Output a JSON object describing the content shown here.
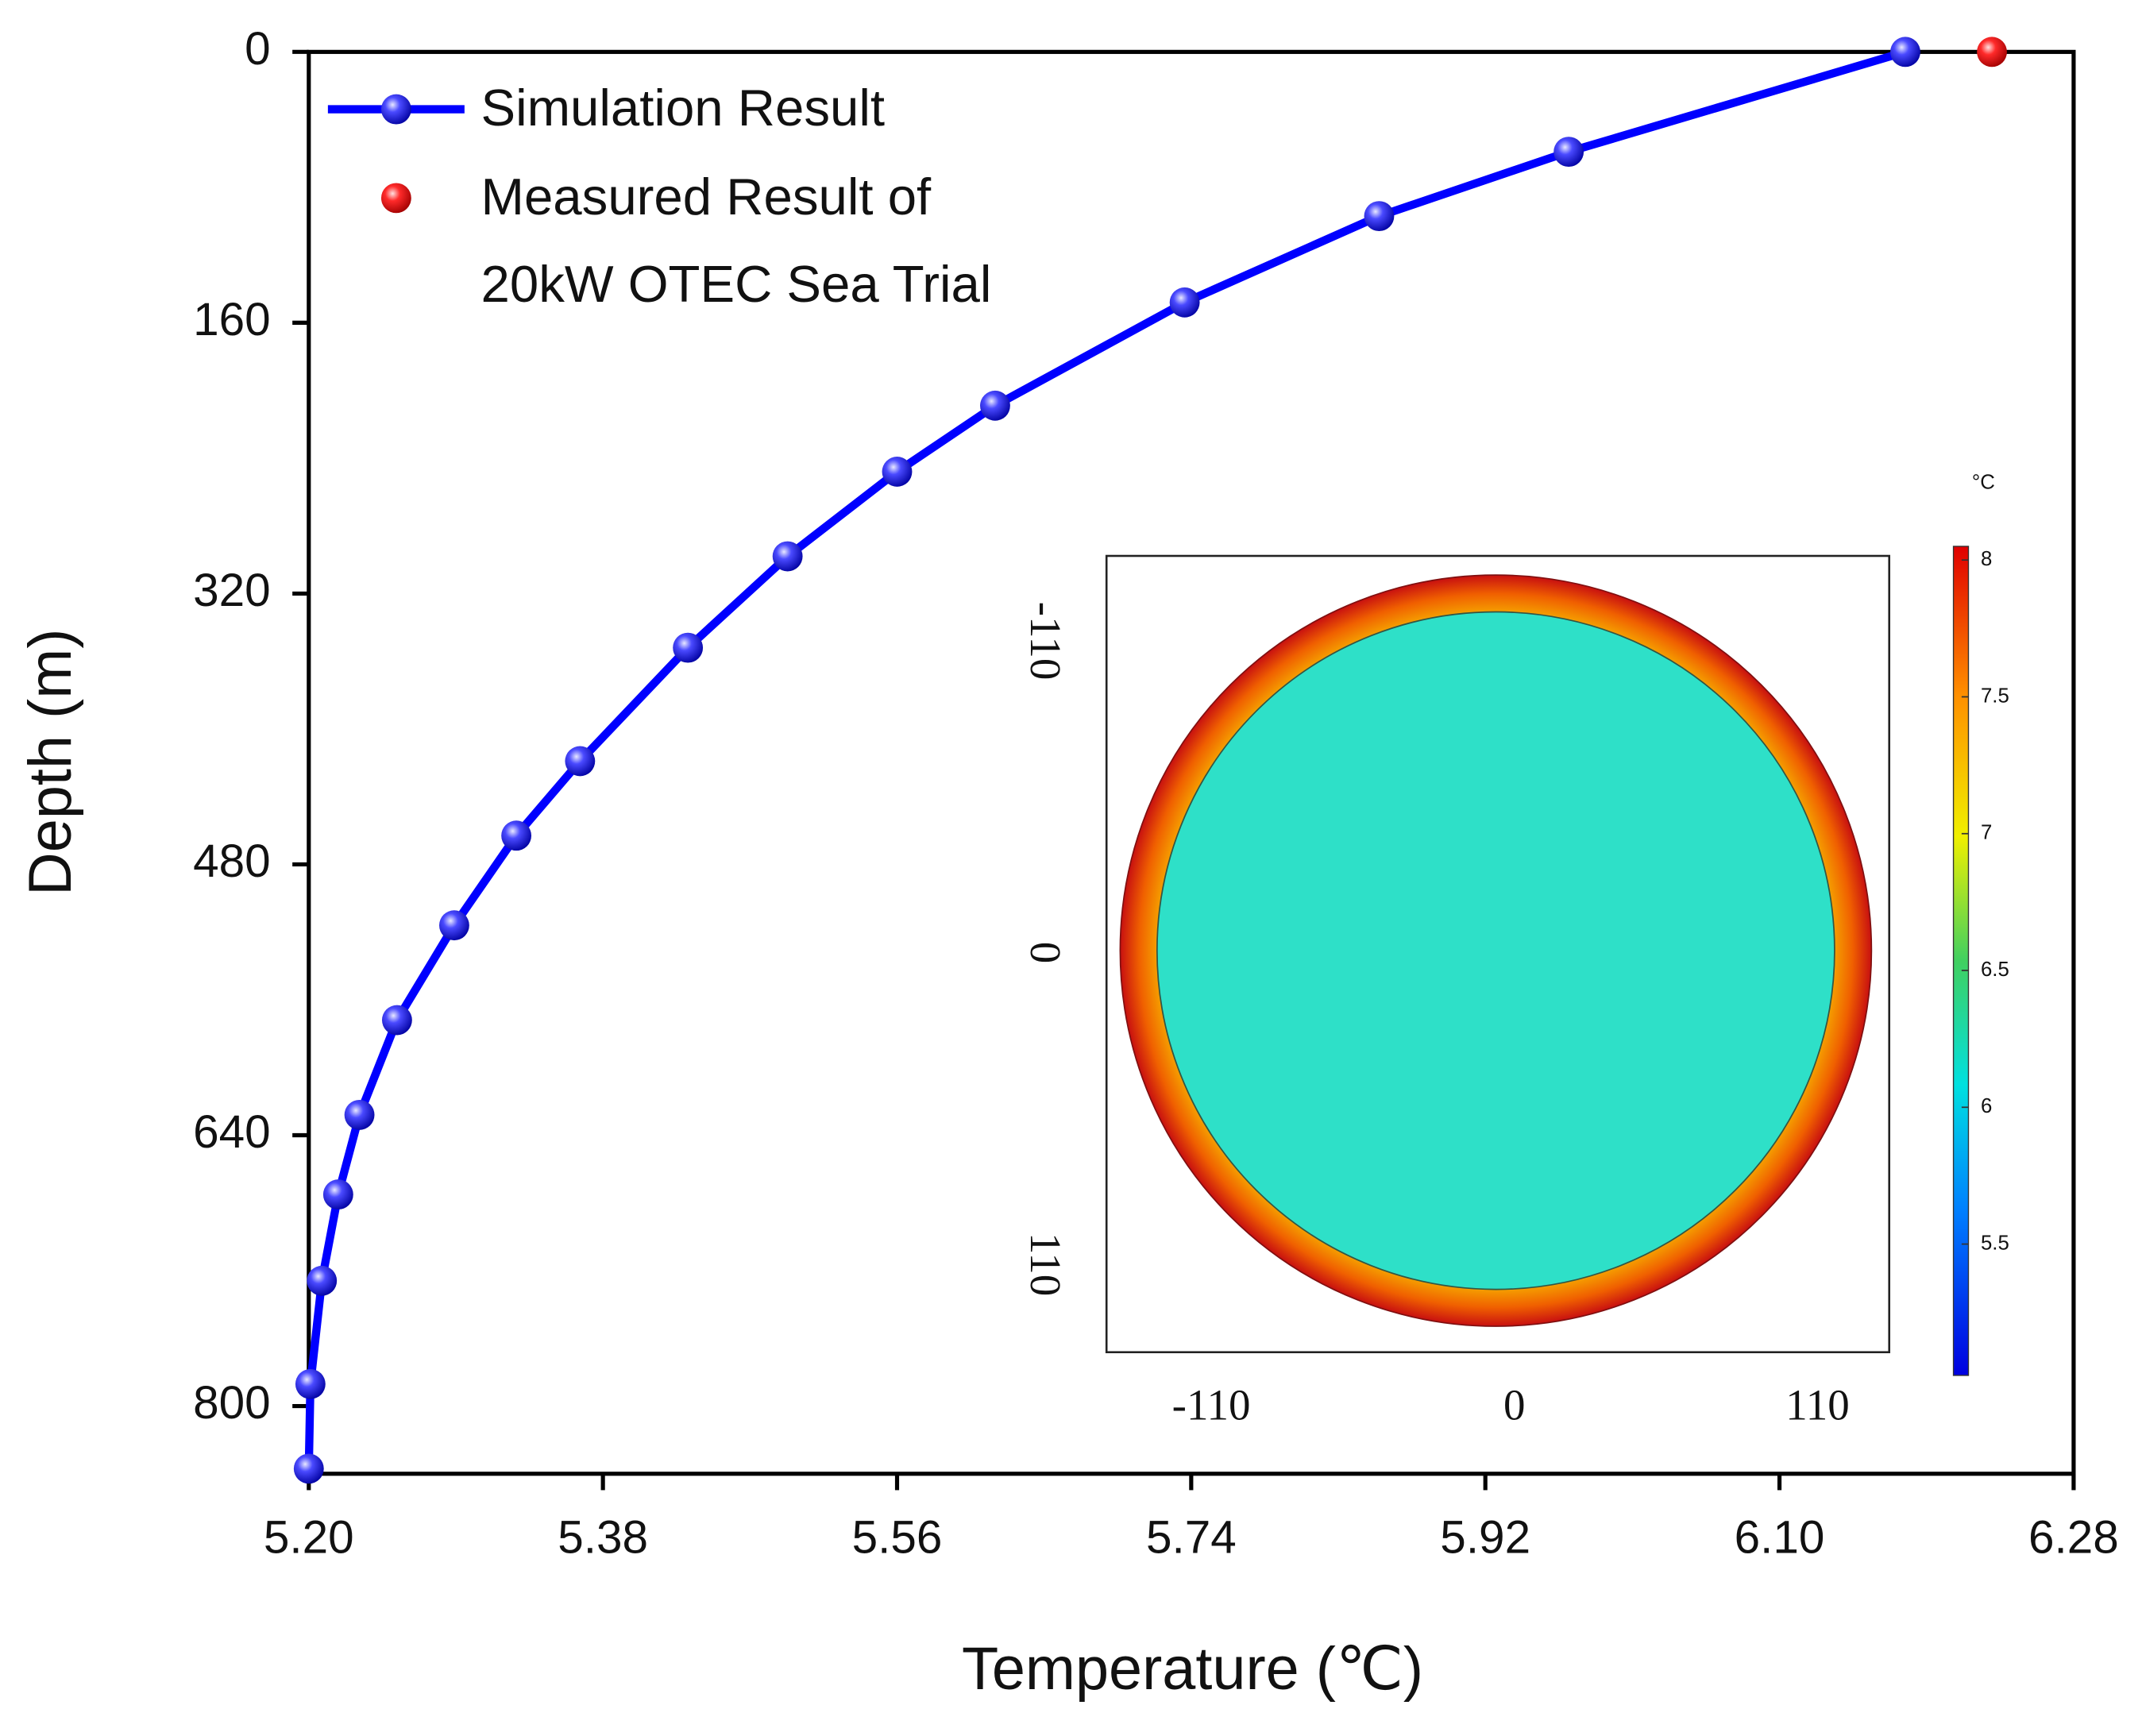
{
  "chart_data": {
    "type": "line",
    "xlabel": "Temperature (℃)",
    "ylabel": "Depth (m)",
    "xlim": [
      5.2,
      6.28
    ],
    "xticks": [
      {
        "value": 5.2,
        "label": "5.20"
      },
      {
        "value": 5.38,
        "label": "5.38"
      },
      {
        "value": 5.56,
        "label": "5.56"
      },
      {
        "value": 5.74,
        "label": "5.74"
      },
      {
        "value": 5.92,
        "label": "5.92"
      },
      {
        "value": 6.1,
        "label": "6.10"
      },
      {
        "value": 6.28,
        "label": "6.28"
      }
    ],
    "ylim": [
      0,
      840
    ],
    "yticks": [
      0,
      160,
      320,
      480,
      640,
      800
    ],
    "y_inverted": true,
    "series": [
      {
        "name": "Simulation Result",
        "color": "#0000ff",
        "marker": true,
        "line": true,
        "x": [
          6.177,
          5.971,
          5.855,
          5.736,
          5.62,
          5.56,
          5.493,
          5.432,
          5.366,
          5.327,
          5.289,
          5.254,
          5.231,
          5.218,
          5.208,
          5.201,
          5.2
        ],
        "values": [
          0,
          59,
          97,
          148,
          209,
          248,
          298,
          352,
          419,
          463,
          516,
          572,
          628,
          675,
          726,
          787,
          837
        ]
      },
      {
        "name": "Measured Result of\n20kW OTEC Sea Trial",
        "color": "#ff0000",
        "marker": true,
        "line": false,
        "x": [
          6.23
        ],
        "values": [
          0
        ]
      }
    ],
    "legend": "upper left"
  },
  "inset": {
    "xlim": [
      -148,
      136
    ],
    "ylim": [
      -140,
      141
    ],
    "xticks": [
      -110,
      0,
      110
    ],
    "yticks": [
      -110,
      0,
      110
    ],
    "colorbar": {
      "unit": "°C",
      "clim": [
        5.02,
        8.05
      ],
      "ticks": [
        5.5,
        6,
        6.5,
        7,
        7.5,
        8
      ]
    }
  }
}
